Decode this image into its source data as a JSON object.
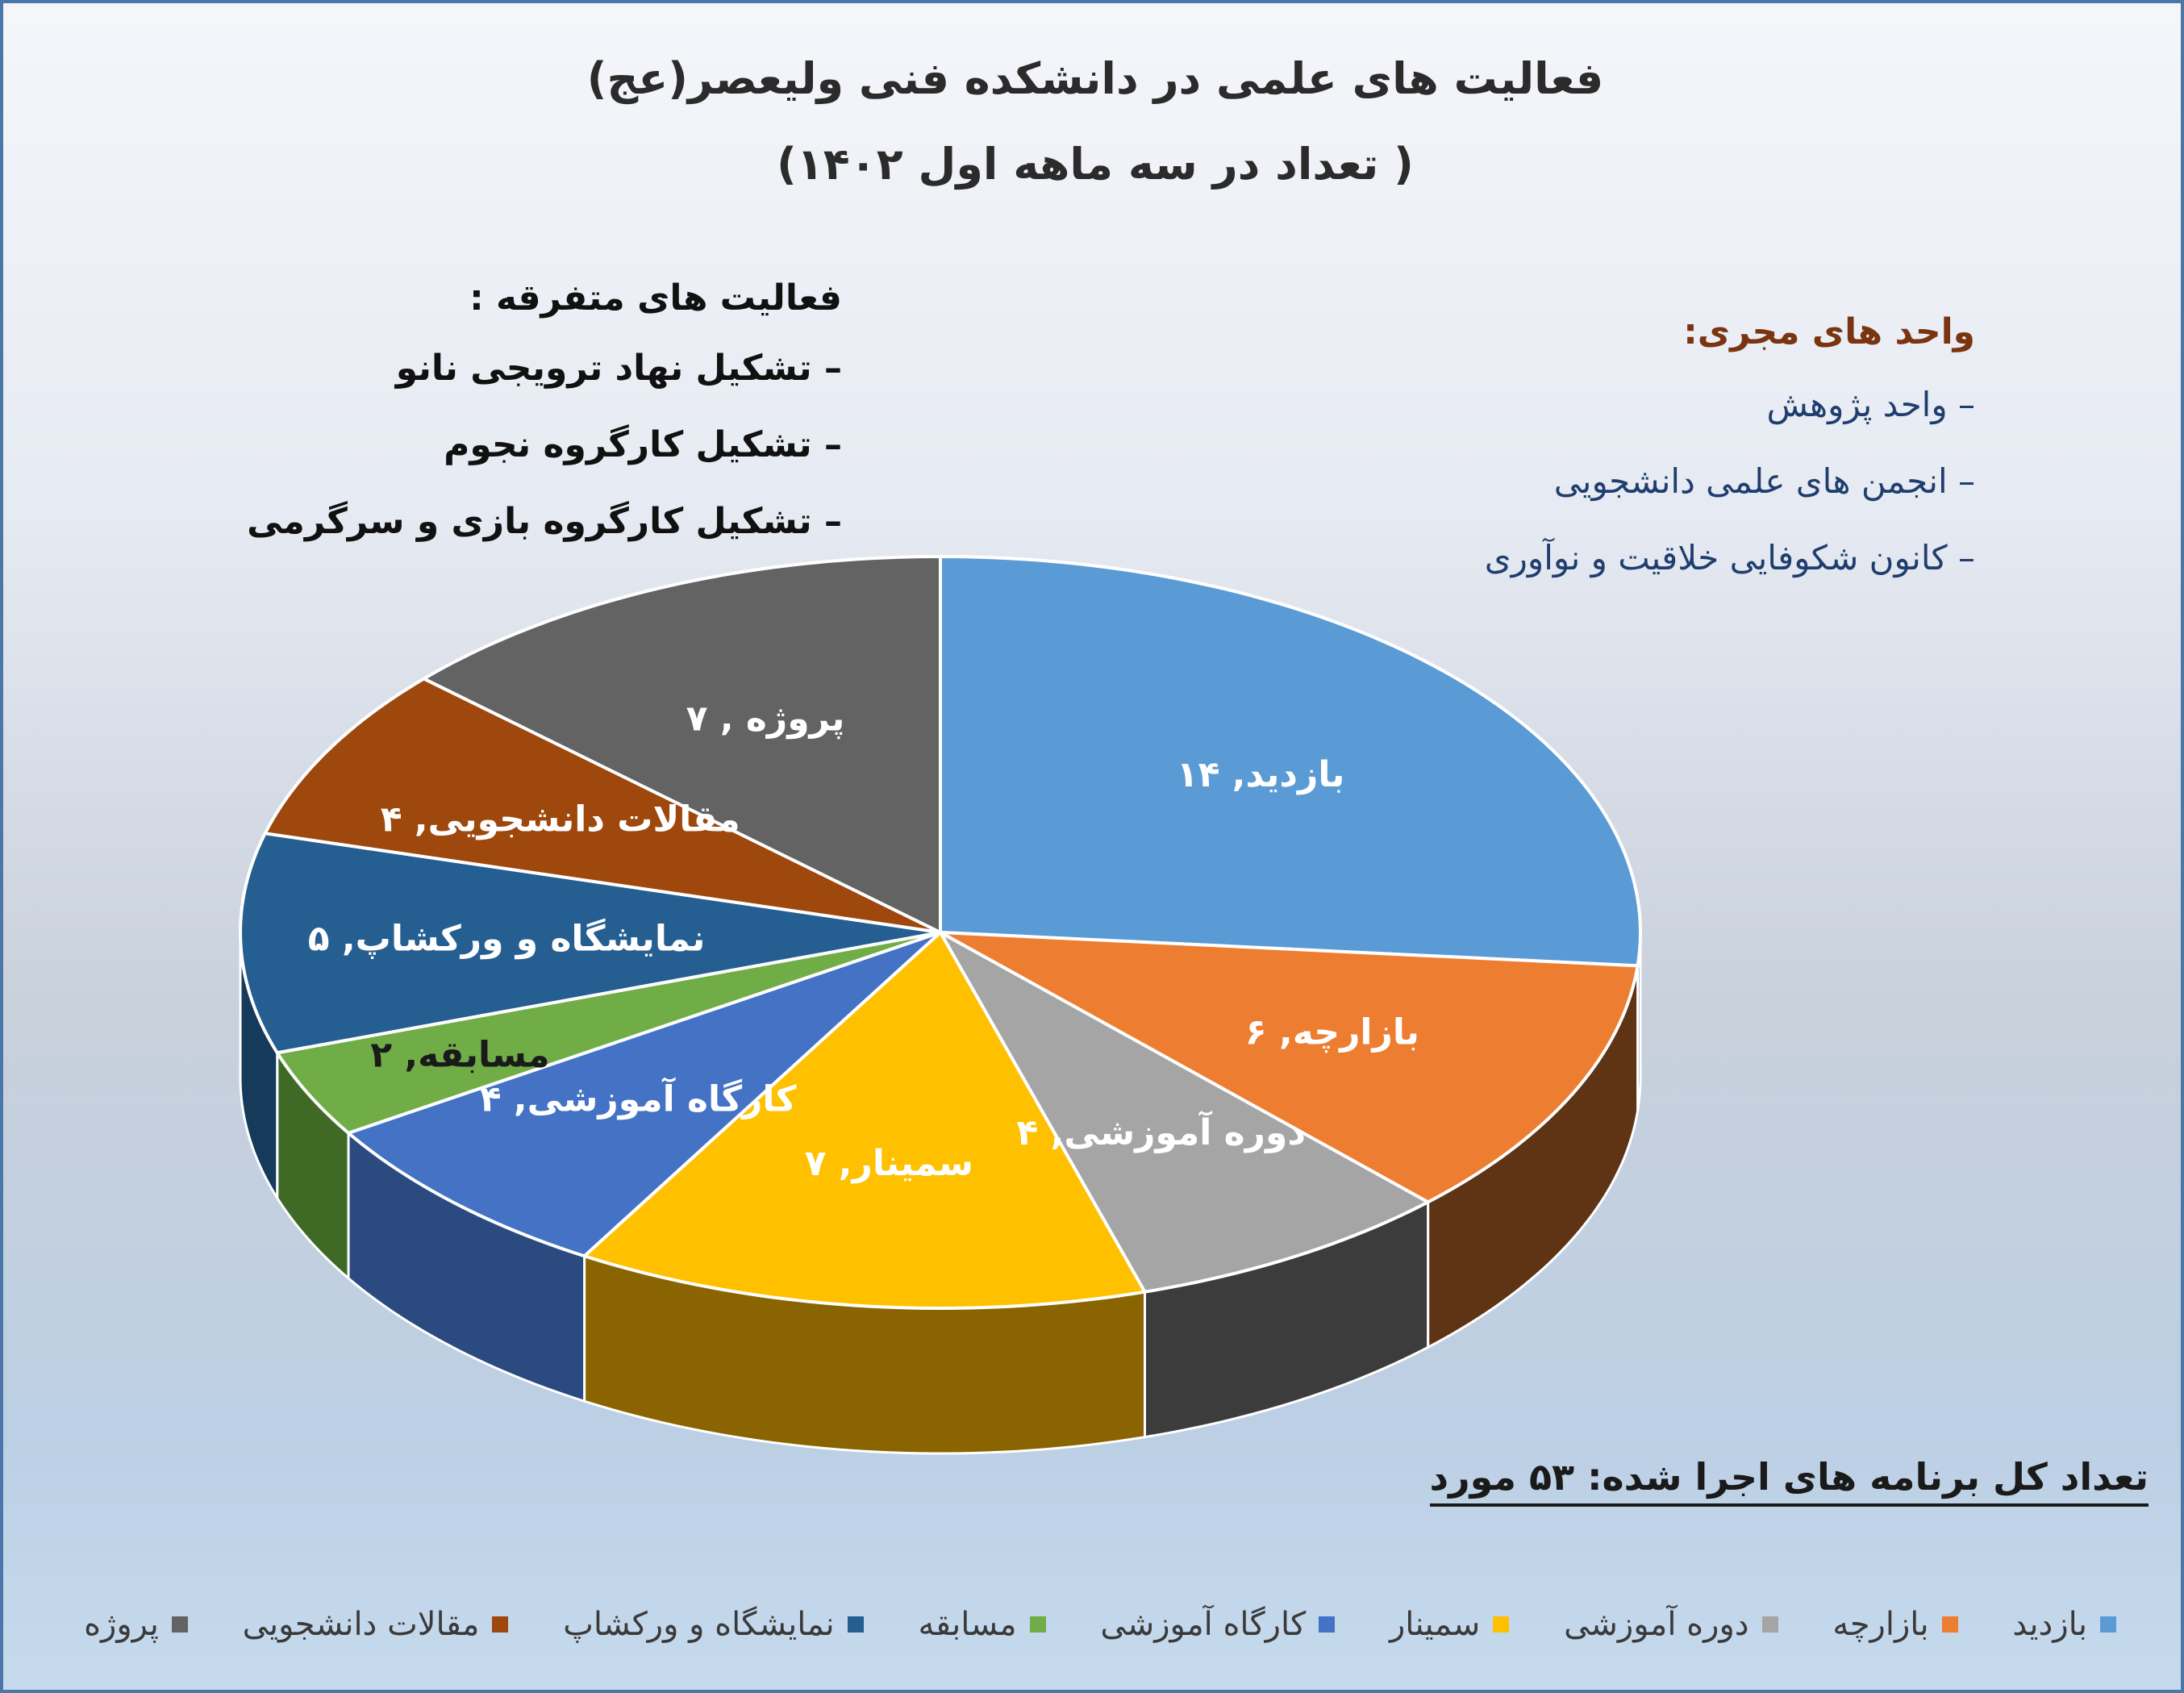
{
  "title_line1": "فعالیت های علمی در دانشکده فنی ولیعصر(عج)",
  "title_line2": "( تعداد در سه ماهه اول ۱۴۰۲)",
  "misc_activities": {
    "heading": "فعالیت های متفرقه  :",
    "items": [
      "تشکیل نهاد ترویجی نانو",
      "تشکیل کارگروه نجوم",
      "تشکیل کارگروه بازی و سرگرمی"
    ]
  },
  "executive_units": {
    "heading": "واحد های مجری:",
    "items": [
      "واحد پژوهش",
      "انجمن های علمی دانشجویی",
      "کانون شکوفایی خلاقیت و نوآوری"
    ]
  },
  "total_text": "تعداد کل برنامه های اجرا شده:  ۵۳  مورد",
  "chart_data": {
    "type": "pie",
    "style": "3d",
    "total": 53,
    "slices": [
      {
        "name": "بازدید",
        "value": 14,
        "label": "بازدید, ۱۴",
        "color": "#5b9bd5",
        "side": "#3b6e9e"
      },
      {
        "name": "بازارچه",
        "value": 6,
        "label": "بازارچه, ۶",
        "color": "#ed7d31",
        "side": "#5e3415"
      },
      {
        "name": "دوره آموزشی",
        "value": 4,
        "label": "دوره آموزشی, ۴",
        "color": "#a5a5a5",
        "side": "#3c3c3c"
      },
      {
        "name": "سمینار",
        "value": 7,
        "label": "سمینار, ۷",
        "color": "#ffc000",
        "side": "#8a6400"
      },
      {
        "name": "کارگاه آموزشی",
        "value": 4,
        "label": "کارگاه آموزشی, ۴",
        "color": "#4472c4",
        "side": "#2b4a80"
      },
      {
        "name": "مسابقه",
        "value": 2,
        "label": "مسابقه, ۲",
        "color": "#70ad47",
        "side": "#3f6a25"
      },
      {
        "name": "نمایشگاه و ورکشاپ",
        "value": 5,
        "label": "نمایشگاه و ورکشاپ, ۵",
        "color": "#255e91",
        "side": "#163a5a"
      },
      {
        "name": "مقالات دانشجویی",
        "value": 4,
        "label": "مقالات دانشجویی, ۴",
        "color": "#9e480e",
        "side": "#5a2a08"
      },
      {
        "name": "پروژه",
        "value": 7,
        "label": "پروژه , ۷",
        "color": "#636363",
        "side": "#333333"
      }
    ],
    "legend": [
      "بازدید",
      "بازارچه",
      "دوره آموزشی",
      "سمینار",
      "کارگاه آموزشی",
      "مسابقه",
      "نمایشگاه و ورکشاپ",
      "مقالات دانشجویی",
      "پروژه"
    ],
    "legend_position": "bottom"
  }
}
